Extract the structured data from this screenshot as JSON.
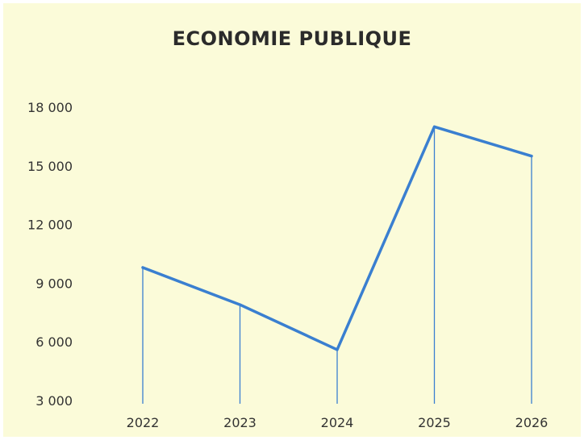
{
  "chart_data": {
    "type": "line",
    "title": "ECONOMIE PUBLIQUE",
    "xlabel": "",
    "ylabel": "",
    "categories": [
      "2022",
      "2023",
      "2024",
      "2025",
      "2026"
    ],
    "series": [
      {
        "values": [
          9800,
          7900,
          5600,
          17000,
          15500
        ]
      }
    ],
    "y_ticks": [
      3000,
      6000,
      9000,
      12000,
      15000,
      18000
    ],
    "y_tick_labels": [
      "3 000",
      "6 000",
      "9 000",
      "12 000",
      "15 000",
      "18 000"
    ],
    "ylim": [
      3000,
      18000
    ],
    "grid": false,
    "drop_lines": true,
    "colors": {
      "background": "#fbfbd9",
      "line": "#3a7fd0",
      "drop_line": "#3a7fd0"
    }
  }
}
